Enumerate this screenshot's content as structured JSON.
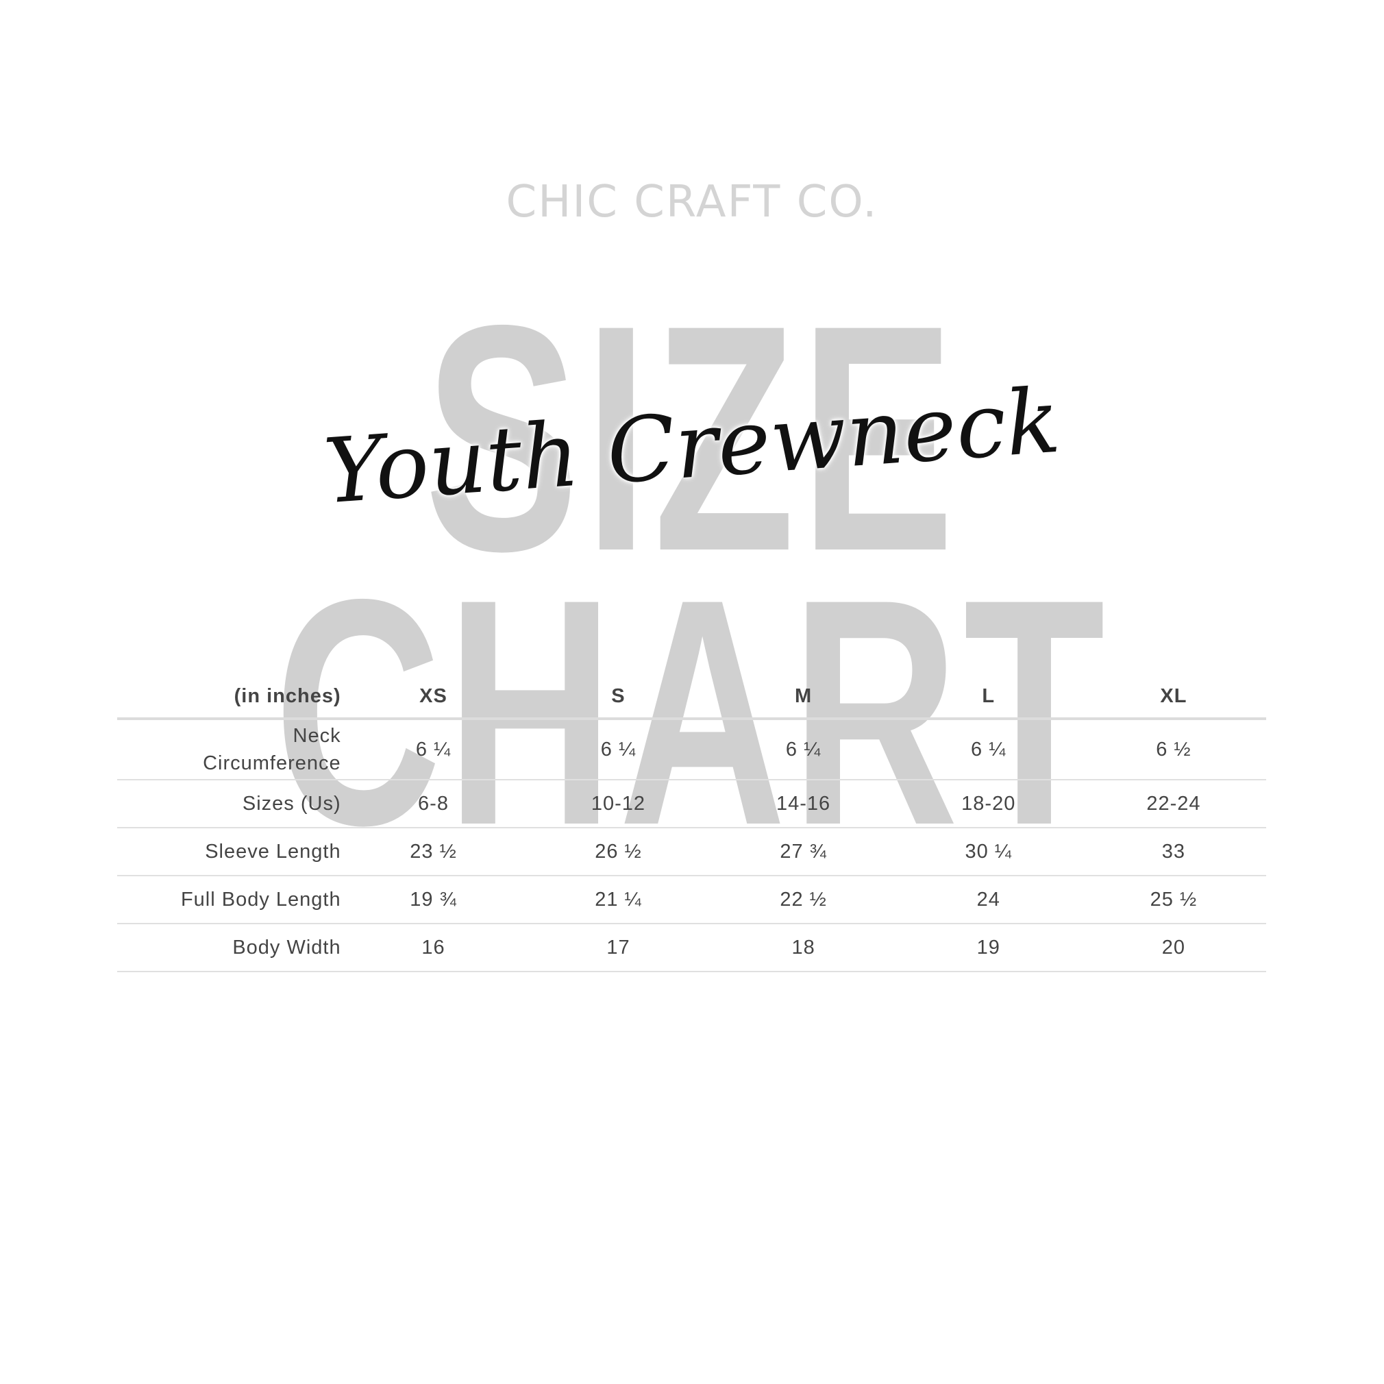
{
  "brand": "CHIC CRAFT CO.",
  "background_title": "SIZE CHART",
  "script_title": "Youth Crewneck",
  "table": {
    "unit_label": "(in inches)",
    "columns": [
      "XS",
      "S",
      "M",
      "L",
      "XL"
    ],
    "rows": [
      {
        "label": "Neck Circumference",
        "values": [
          "6 ¼",
          "6 ¼",
          "6 ¼",
          "6 ¼",
          "6 ½"
        ]
      },
      {
        "label": "Sizes (Us)",
        "values": [
          "6-8",
          "10-12",
          "14-16",
          "18-20",
          "22-24"
        ]
      },
      {
        "label": "Sleeve Length",
        "values": [
          "23 ½",
          "26 ½",
          "27 ¾",
          "30 ¼",
          "33"
        ]
      },
      {
        "label": "Full Body Length",
        "values": [
          "19 ¾",
          "21 ¼",
          "22 ½",
          "24",
          "25 ½"
        ]
      },
      {
        "label": "Body Width",
        "values": [
          "16",
          "17",
          "18",
          "19",
          "20"
        ]
      }
    ]
  }
}
